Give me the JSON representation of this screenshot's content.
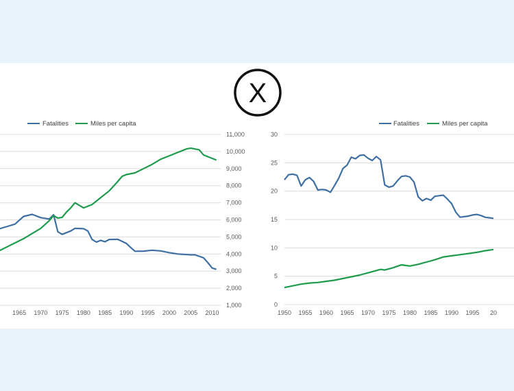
{
  "badge": {
    "symbol": "X",
    "icon": "x-circle-icon"
  },
  "colors": {
    "fatalities": "#3e6fa3",
    "miles": "#1e9a4c",
    "grid": "#dcdcdc",
    "page_bg": "#e8f2fb"
  },
  "chart_data": [
    {
      "type": "line",
      "title": "",
      "legend": [
        "Fatalities",
        "Miles per capita"
      ],
      "legend_position": "top",
      "grid": true,
      "y_right_ticks": [
        "1,000",
        "2,000",
        "3,000",
        "4,000",
        "5,000",
        "6,000",
        "7,000",
        "8,000",
        "9,000",
        "10,000",
        "11,000"
      ],
      "y_right_range": [
        1000,
        11000
      ],
      "x_ticks": [
        "1965",
        "1970",
        "1975",
        "1980",
        "1985",
        "1990",
        "1995",
        "2000",
        "2005",
        "2010"
      ],
      "x_range": [
        1960.5,
        2012
      ],
      "series": [
        {
          "name": "Fatalities",
          "scale": "right",
          "x": [
            1960,
            1962,
            1964,
            1966,
            1968,
            1970,
            1972,
            1973,
            1974,
            1975,
            1977,
            1978,
            1980,
            1981,
            1982,
            1983,
            1984,
            1985,
            1986,
            1988,
            1990,
            1991,
            1992,
            1994,
            1996,
            1998,
            2000,
            2002,
            2005,
            2006,
            2008,
            2009,
            2010,
            2011
          ],
          "values": [
            5450,
            5600,
            5750,
            6200,
            6320,
            6130,
            6050,
            6300,
            5300,
            5150,
            5350,
            5500,
            5480,
            5350,
            4850,
            4700,
            4800,
            4720,
            4850,
            4860,
            4620,
            4380,
            4160,
            4170,
            4220,
            4180,
            4080,
            4000,
            3950,
            3950,
            3780,
            3500,
            3180,
            3100
          ]
        },
        {
          "name": "Miles per capita",
          "scale": "right",
          "x": [
            1960,
            1962,
            1964,
            1966,
            1968,
            1970,
            1972,
            1973,
            1974,
            1975,
            1976,
            1977,
            1978,
            1979,
            1980,
            1982,
            1984,
            1986,
            1988,
            1989,
            1990,
            1992,
            1994,
            1996,
            1998,
            2000,
            2002,
            2004,
            2005,
            2007,
            2008,
            2010,
            2011
          ],
          "values": [
            4150,
            4400,
            4650,
            4900,
            5200,
            5500,
            5950,
            6250,
            6100,
            6150,
            6450,
            6700,
            7000,
            6850,
            6700,
            6900,
            7300,
            7700,
            8250,
            8550,
            8650,
            8750,
            9000,
            9250,
            9550,
            9750,
            9950,
            10150,
            10200,
            10100,
            9800,
            9600,
            9500
          ]
        }
      ]
    },
    {
      "type": "line",
      "title": "",
      "legend": [
        "Fatalities",
        "Miles per capita"
      ],
      "legend_position": "top",
      "grid": true,
      "y_ticks": [
        "0",
        "5",
        "10",
        "15",
        "20",
        "25",
        "30"
      ],
      "ylim": [
        0,
        30
      ],
      "x_ticks": [
        "1950",
        "1955",
        "1960",
        "1965",
        "1970",
        "1975",
        "1980",
        "1985",
        "1990",
        "1995",
        "20"
      ],
      "x_range": [
        1950,
        2000
      ],
      "series": [
        {
          "name": "Fatalities",
          "x": [
            1950,
            1951,
            1952,
            1953,
            1954,
            1955,
            1956,
            1957,
            1958,
            1959,
            1960,
            1961,
            1962,
            1963,
            1964,
            1965,
            1966,
            1967,
            1968,
            1969,
            1970,
            1971,
            1972,
            1973,
            1974,
            1975,
            1976,
            1977,
            1978,
            1979,
            1980,
            1981,
            1982,
            1983,
            1984,
            1985,
            1986,
            1987,
            1988,
            1989,
            1990,
            1991,
            1992,
            1993,
            1994,
            1995,
            1996,
            1997,
            1998,
            1999,
            2000
          ],
          "values": [
            22.0,
            22.9,
            23.0,
            22.8,
            20.9,
            22.0,
            22.4,
            21.7,
            20.2,
            20.3,
            20.2,
            19.8,
            21.0,
            22.3,
            24.0,
            24.6,
            26.0,
            25.7,
            26.3,
            26.4,
            25.8,
            25.4,
            26.1,
            25.5,
            21.1,
            20.7,
            20.9,
            21.8,
            22.6,
            22.7,
            22.5,
            21.6,
            19.0,
            18.3,
            18.7,
            18.4,
            19.1,
            19.2,
            19.3,
            18.6,
            17.8,
            16.3,
            15.4,
            15.5,
            15.6,
            15.8,
            15.9,
            15.7,
            15.4,
            15.3,
            15.2
          ]
        },
        {
          "name": "Miles per capita",
          "x": [
            1950,
            1952,
            1954,
            1956,
            1958,
            1960,
            1962,
            1964,
            1966,
            1968,
            1970,
            1972,
            1973,
            1974,
            1976,
            1978,
            1979,
            1980,
            1982,
            1984,
            1986,
            1988,
            1990,
            1992,
            1994,
            1996,
            1998,
            2000
          ],
          "values": [
            3.0,
            3.3,
            3.6,
            3.8,
            3.9,
            4.1,
            4.3,
            4.6,
            4.9,
            5.2,
            5.6,
            6.0,
            6.2,
            6.1,
            6.5,
            7.0,
            6.9,
            6.8,
            7.1,
            7.5,
            7.9,
            8.4,
            8.6,
            8.8,
            9.0,
            9.2,
            9.5,
            9.7
          ]
        }
      ]
    }
  ]
}
